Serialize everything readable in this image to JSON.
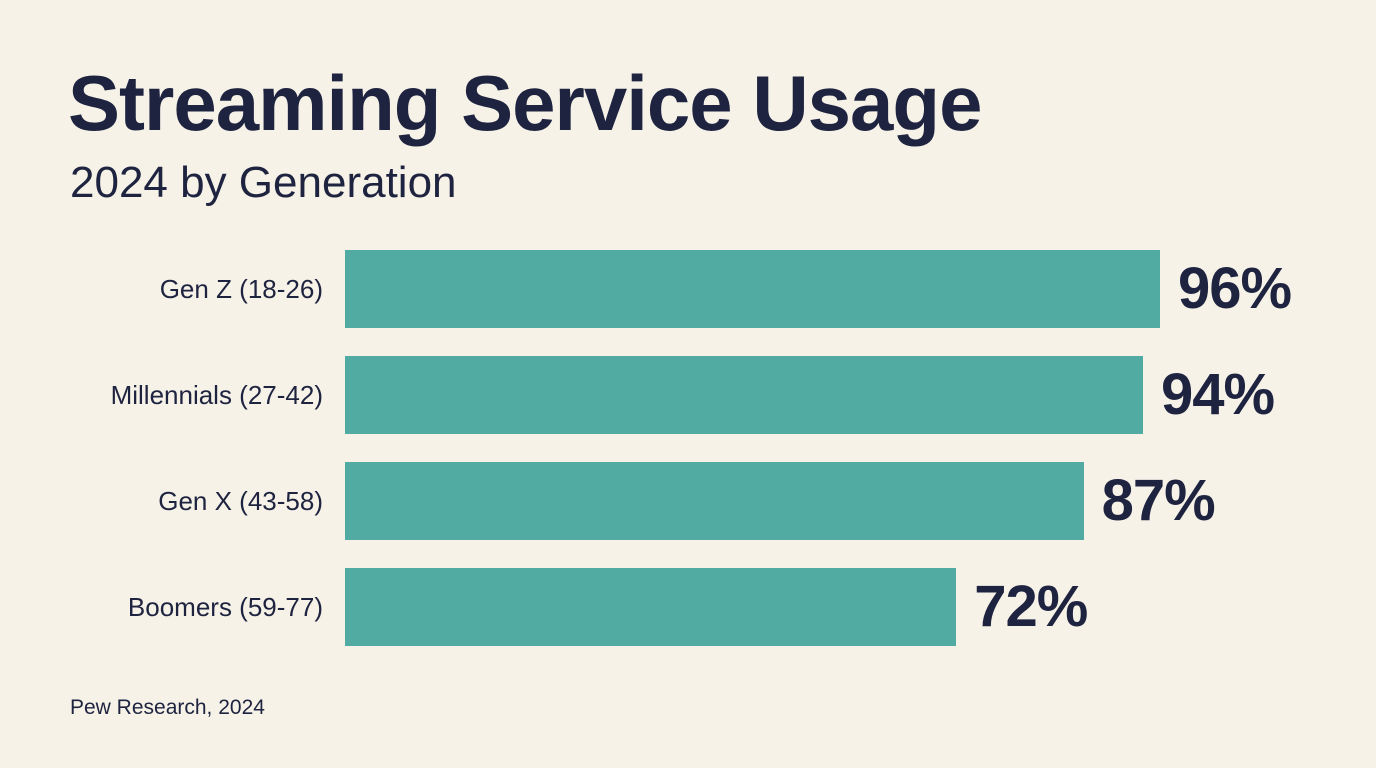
{
  "chart_data": {
    "type": "bar",
    "orientation": "horizontal",
    "title": "Streaming Service Usage",
    "subtitle": "2024 by Generation",
    "categories": [
      "Gen Z (18-26)",
      "Millennials (27-42)",
      "Gen X (43-58)",
      "Boomers (59-77)"
    ],
    "values": [
      96,
      94,
      87,
      72
    ],
    "value_labels": [
      "96%",
      "94%",
      "87%",
      "72%"
    ],
    "unit": "%",
    "grid": false,
    "source": "Pew Research, 2024"
  },
  "colors": {
    "background": "#f6f2e7",
    "bar": "#52aba3",
    "text": "#1e2340"
  }
}
